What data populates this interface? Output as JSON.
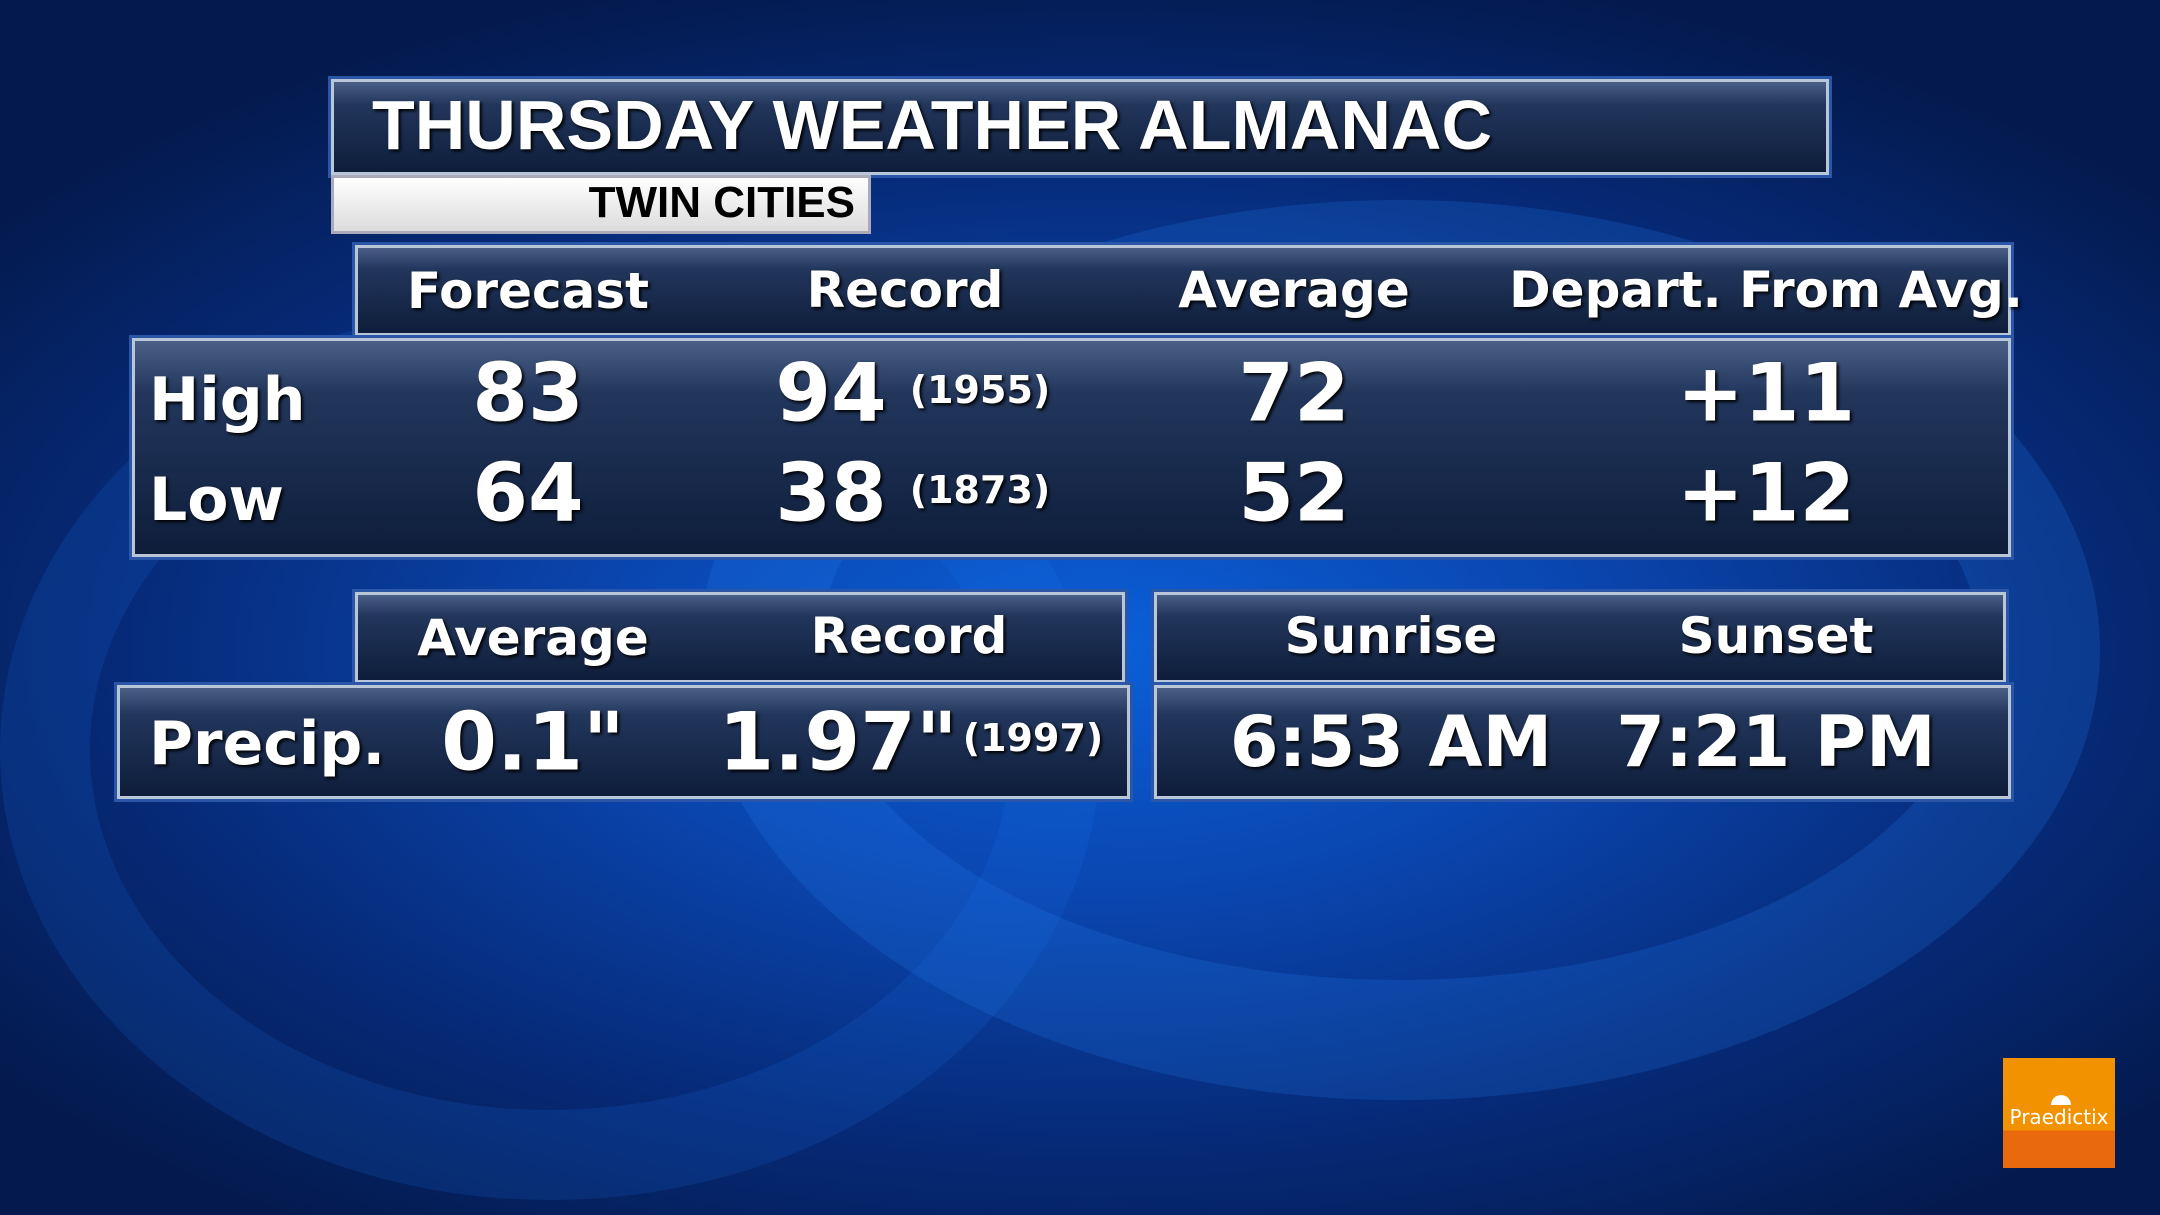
{
  "title": "THURSDAY WEATHER ALMANAC",
  "location": "TWIN CITIES",
  "temps": {
    "headers": [
      "Forecast",
      "Record",
      "Average",
      "Depart. From Avg."
    ],
    "rows": [
      {
        "label": "High",
        "forecast": "83",
        "record": "94",
        "record_year": "(1955)",
        "average": "72",
        "departure": "+11"
      },
      {
        "label": "Low",
        "forecast": "64",
        "record": "38",
        "record_year": "(1873)",
        "average": "52",
        "departure": "+12"
      }
    ]
  },
  "precip": {
    "headers": [
      "Average",
      "Record"
    ],
    "label": "Precip.",
    "average": "0.1\"",
    "record": "1.97\"",
    "record_year": "(1997)"
  },
  "sun": {
    "headers": [
      "Sunrise",
      "Sunset"
    ],
    "sunrise": "6:53 AM",
    "sunset": "7:21 PM"
  },
  "logo": {
    "text": "Praedictix",
    "colors": [
      "#f39200",
      "#e86a0c"
    ]
  }
}
